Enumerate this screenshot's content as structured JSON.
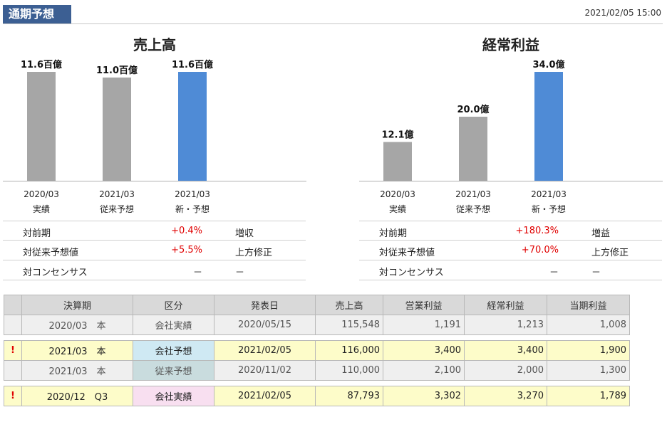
{
  "header": {
    "title": "通期予想",
    "timestamp": "2021/02/05 15:00"
  },
  "chart_data": [
    {
      "type": "bar",
      "title": "売上高",
      "categories": [
        [
          "2020/03",
          "実績"
        ],
        [
          "2021/03",
          "従来予想"
        ],
        [
          "2021/03",
          "新・予想"
        ]
      ],
      "values": [
        11.6,
        11.0,
        11.6
      ],
      "value_labels": [
        "11.6百億",
        "11.0百億",
        "11.6百億"
      ],
      "colors": [
        "#a6a6a6",
        "#a6a6a6",
        "#4f8bd6"
      ],
      "ylim": [
        0,
        11.6
      ]
    },
    {
      "type": "bar",
      "title": "経常利益",
      "categories": [
        [
          "2020/03",
          "実績"
        ],
        [
          "2021/03",
          "従来予想"
        ],
        [
          "2021/03",
          "新・予想"
        ]
      ],
      "values": [
        12.1,
        20.0,
        34.0
      ],
      "value_labels": [
        "12.1億",
        "20.0億",
        "34.0億"
      ],
      "colors": [
        "#a6a6a6",
        "#a6a6a6",
        "#4f8bd6"
      ],
      "ylim": [
        0,
        34.0
      ]
    }
  ],
  "sales_stats": [
    {
      "label": "対前期",
      "value": "+0.4%",
      "note": "増収",
      "red": true
    },
    {
      "label": "対従来予想値",
      "value": "+5.5%",
      "note": "上方修正",
      "red": true
    },
    {
      "label": "対コンセンサス",
      "value": "－",
      "note": "－",
      "red": false
    }
  ],
  "profit_stats": [
    {
      "label": "対前期",
      "value": "+180.3%",
      "note": "増益",
      "red": true
    },
    {
      "label": "対従来予想値",
      "value": "+70.0%",
      "note": "上方修正",
      "red": true
    },
    {
      "label": "対コンセンサス",
      "value": "－",
      "note": "－",
      "red": false
    }
  ],
  "table": {
    "headers": [
      "決算期",
      "区分",
      "発表日",
      "売上高",
      "営業利益",
      "経常利益",
      "当期利益"
    ],
    "rows": [
      {
        "flag": "",
        "period": "2020/03　本",
        "kubun": "会社実績",
        "date": "2020/05/15",
        "sales": "115,548",
        "op": "1,191",
        "ord": "1,213",
        "net": "1,008"
      },
      {
        "flag": "!",
        "period": "2021/03　本",
        "kubun": "会社予想",
        "date": "2021/02/05",
        "sales": "116,000",
        "op": "3,400",
        "ord": "3,400",
        "net": "1,900"
      },
      {
        "flag": "",
        "period": "2021/03　本",
        "kubun": "従来予想",
        "date": "2020/11/02",
        "sales": "110,000",
        "op": "2,100",
        "ord": "2,000",
        "net": "1,300"
      },
      {
        "flag": "!",
        "period": "2020/12　Q3",
        "kubun": "会社実績",
        "date": "2021/02/05",
        "sales": "87,793",
        "op": "3,302",
        "ord": "3,270",
        "net": "1,789"
      }
    ]
  }
}
